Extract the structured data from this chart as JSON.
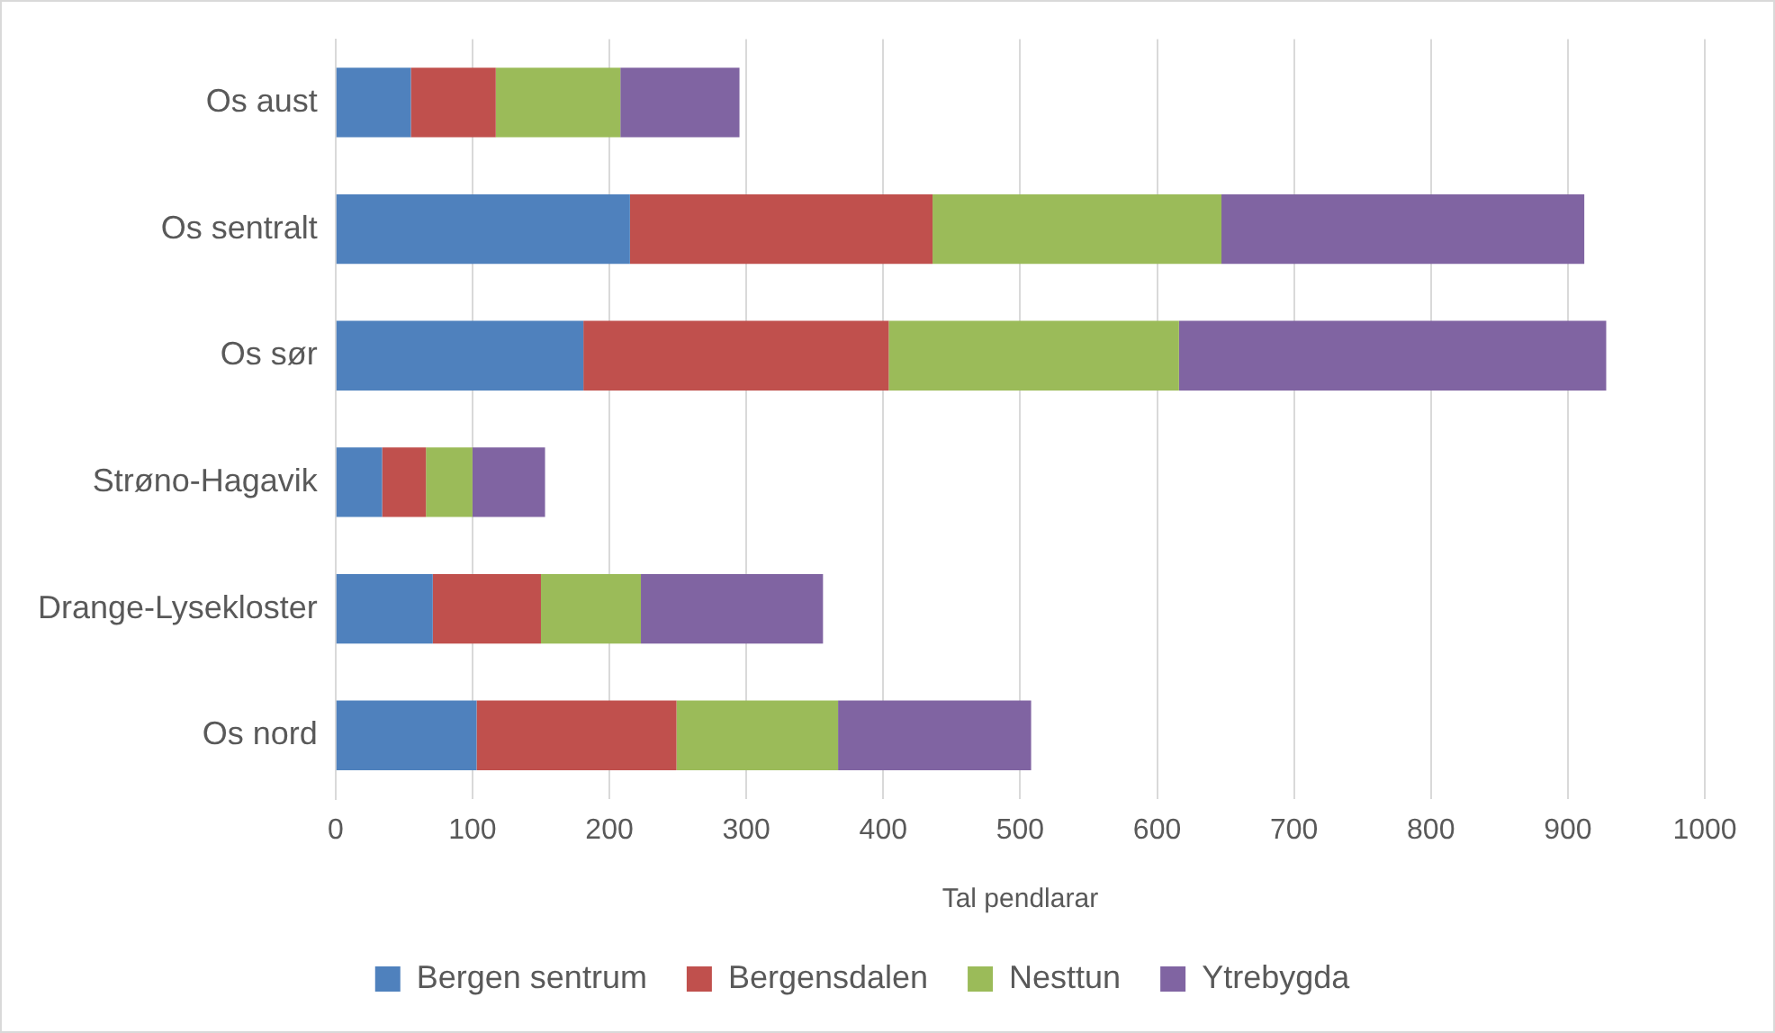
{
  "chart_data": {
    "type": "bar",
    "orientation": "horizontal",
    "stacked": true,
    "xlabel": "Tal pendlarar",
    "categories": [
      "Os aust",
      "Os sentralt",
      "Os sør",
      "Strøno-Hagavik",
      "Drange-Lysekloster",
      "Os nord"
    ],
    "series": [
      {
        "name": "Bergen sentrum",
        "color": "#4f81bd",
        "values": [
          55,
          215,
          181,
          34,
          71,
          103
        ]
      },
      {
        "name": "Bergensdalen",
        "color": "#c0504d",
        "values": [
          62,
          221,
          223,
          32,
          79,
          146
        ]
      },
      {
        "name": "Nesttun",
        "color": "#9bbb59",
        "values": [
          91,
          211,
          212,
          34,
          73,
          118
        ]
      },
      {
        "name": "Ytrebygda",
        "color": "#8064a2",
        "values": [
          87,
          265,
          312,
          53,
          133,
          141
        ]
      }
    ],
    "xlim": [
      0,
      1000
    ],
    "xticks": [
      0,
      100,
      200,
      300,
      400,
      500,
      600,
      700,
      800,
      900,
      1000
    ],
    "grid": "x",
    "legend": "bottom"
  }
}
